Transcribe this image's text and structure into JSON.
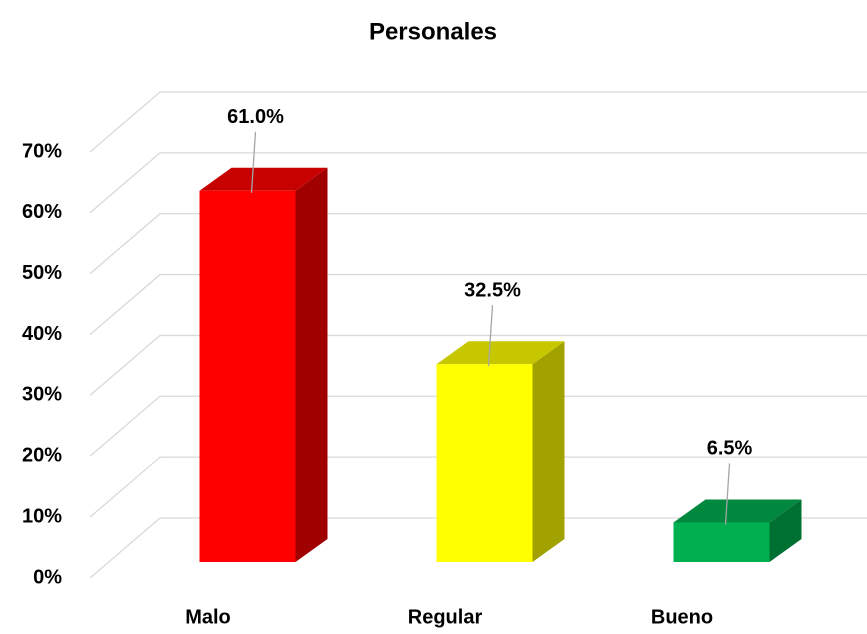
{
  "chart_data": {
    "type": "bar3d",
    "title": "Personales",
    "categories": [
      "Malo",
      "Regular",
      "Bueno"
    ],
    "values": [
      61.0,
      32.5,
      6.5
    ],
    "value_labels": [
      "61.0%",
      "32.5%",
      "6.5%"
    ],
    "colors": [
      "#ff0000",
      "#ffff00",
      "#00b050"
    ],
    "ylim": [
      0,
      70
    ],
    "yticks": [
      {
        "value": 0,
        "label": "0%"
      },
      {
        "value": 10,
        "label": "10%"
      },
      {
        "value": 20,
        "label": "20%"
      },
      {
        "value": 30,
        "label": "30%"
      },
      {
        "value": 40,
        "label": "40%"
      },
      {
        "value": 50,
        "label": "50%"
      },
      {
        "value": 60,
        "label": "60%"
      },
      {
        "value": 70,
        "label": "70%"
      }
    ],
    "grid": true
  }
}
